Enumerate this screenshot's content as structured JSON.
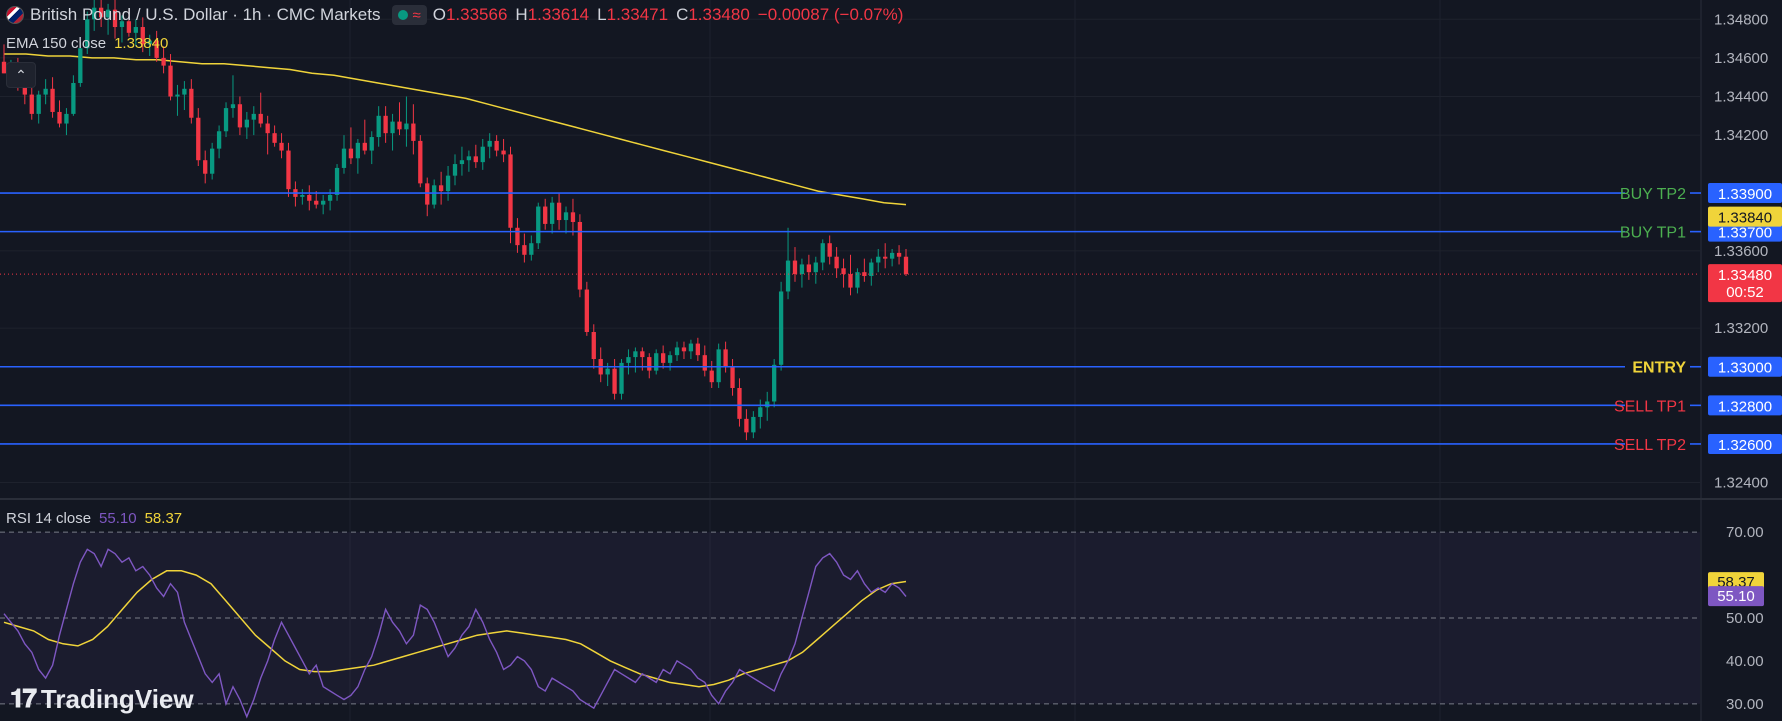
{
  "header": {
    "symbol_title": "British Pound / U.S. Dollar · 1h · CMC Markets",
    "ohlc": [
      {
        "key": "O",
        "value": "1.33566"
      },
      {
        "key": "H",
        "value": "1.33614"
      },
      {
        "key": "L",
        "value": "1.33471"
      },
      {
        "key": "C",
        "value": "1.33480"
      }
    ],
    "change": "−0.00087 (−0.07%)",
    "ema_label": "EMA 150 close",
    "ema_value": "1.33840",
    "rsi_label": "RSI 14 close",
    "rsi_value": "55.10",
    "rsi_ma_value": "58.37"
  },
  "branding": {
    "logo_text": "TradingView"
  },
  "colors": {
    "background": "#131722",
    "up": "#089981",
    "down": "#f23645",
    "ema": "#f0d43a",
    "rsi": "#7e57c2",
    "level_line": "#2962ff",
    "buy_label": "#4caf50",
    "sell_label": "#f23645",
    "entry_label": "#f0d43a"
  },
  "icons": [
    "uk-flag-icon",
    "live-dot-icon",
    "wave-icon",
    "chevron-up-icon",
    "tradingview-logo-icon"
  ],
  "chart_data": {
    "type": "candlestick",
    "symbol": "GBPUSD",
    "timeframe": "1h",
    "y_axis": {
      "ylim": [
        1.3232,
        1.349
      ],
      "ticks": [
        "1.32400",
        "1.33200",
        "1.33600",
        "1.34200",
        "1.34400",
        "1.34600",
        "1.34800"
      ]
    },
    "last_price": {
      "value": 1.3348,
      "label": "1.33480",
      "countdown": "00:52"
    },
    "ema_tag": {
      "value": 1.3384,
      "label": "1.33840"
    },
    "levels": [
      {
        "name": "BUY TP2",
        "value": 1.339,
        "label": "1.33900",
        "kind": "buy"
      },
      {
        "name": "BUY TP1",
        "value": 1.337,
        "label": "1.33700",
        "kind": "buy"
      },
      {
        "name": "ENTRY",
        "value": 1.33,
        "label": "1.33000",
        "kind": "entry"
      },
      {
        "name": "SELL TP1",
        "value": 1.328,
        "label": "1.32800",
        "kind": "sell"
      },
      {
        "name": "SELL TP2",
        "value": 1.326,
        "label": "1.32600",
        "kind": "sell"
      }
    ],
    "candles": [
      [
        1.3458,
        1.3467,
        1.3452,
        1.3452
      ],
      [
        1.3452,
        1.3459,
        1.3447,
        1.3456
      ],
      [
        1.3456,
        1.346,
        1.3443,
        1.3446
      ],
      [
        1.3446,
        1.3451,
        1.3436,
        1.3441
      ],
      [
        1.3441,
        1.3445,
        1.3428,
        1.3431
      ],
      [
        1.3431,
        1.3443,
        1.3426,
        1.3441
      ],
      [
        1.3441,
        1.3449,
        1.3436,
        1.3444
      ],
      [
        1.3444,
        1.345,
        1.3429,
        1.3432
      ],
      [
        1.3432,
        1.3438,
        1.3424,
        1.3426
      ],
      [
        1.3426,
        1.3434,
        1.342,
        1.3431
      ],
      [
        1.3431,
        1.3451,
        1.343,
        1.3447
      ],
      [
        1.3447,
        1.3468,
        1.3445,
        1.3465
      ],
      [
        1.3465,
        1.3484,
        1.3462,
        1.348
      ],
      [
        1.348,
        1.349,
        1.3474,
        1.3486
      ],
      [
        1.3486,
        1.3492,
        1.3476,
        1.3481
      ],
      [
        1.3481,
        1.3488,
        1.3472,
        1.3485
      ],
      [
        1.3485,
        1.349,
        1.347,
        1.3476
      ],
      [
        1.3476,
        1.3482,
        1.3468,
        1.3479
      ],
      [
        1.3479,
        1.3485,
        1.3471,
        1.3473
      ],
      [
        1.3473,
        1.348,
        1.3466,
        1.3476
      ],
      [
        1.3476,
        1.3481,
        1.3463,
        1.3467
      ],
      [
        1.3467,
        1.3472,
        1.3461,
        1.3469
      ],
      [
        1.3469,
        1.3474,
        1.3458,
        1.346
      ],
      [
        1.346,
        1.3466,
        1.3452,
        1.3456
      ],
      [
        1.3456,
        1.3462,
        1.3438,
        1.344
      ],
      [
        1.344,
        1.3446,
        1.343,
        1.3441
      ],
      [
        1.3441,
        1.3448,
        1.3433,
        1.3444
      ],
      [
        1.3444,
        1.3449,
        1.3426,
        1.3429
      ],
      [
        1.3429,
        1.3434,
        1.3404,
        1.3407
      ],
      [
        1.3407,
        1.3412,
        1.3395,
        1.34
      ],
      [
        1.34,
        1.3416,
        1.3397,
        1.3413
      ],
      [
        1.3413,
        1.3425,
        1.3408,
        1.3422
      ],
      [
        1.3422,
        1.3437,
        1.3419,
        1.3434
      ],
      [
        1.3434,
        1.3451,
        1.3429,
        1.3436
      ],
      [
        1.3436,
        1.344,
        1.342,
        1.3424
      ],
      [
        1.3424,
        1.3432,
        1.3418,
        1.3428
      ],
      [
        1.3428,
        1.3435,
        1.342,
        1.3431
      ],
      [
        1.3431,
        1.3442,
        1.3424,
        1.3426
      ],
      [
        1.3426,
        1.343,
        1.341,
        1.3421
      ],
      [
        1.3421,
        1.3425,
        1.3414,
        1.3416
      ],
      [
        1.3416,
        1.3421,
        1.3408,
        1.3412
      ],
      [
        1.3412,
        1.3416,
        1.3388,
        1.3392
      ],
      [
        1.3392,
        1.3396,
        1.3383,
        1.3388
      ],
      [
        1.3388,
        1.3392,
        1.3384,
        1.3389
      ],
      [
        1.3389,
        1.3394,
        1.3381,
        1.3386
      ],
      [
        1.3386,
        1.3391,
        1.3382,
        1.3384
      ],
      [
        1.3384,
        1.3389,
        1.3379,
        1.3386
      ],
      [
        1.3386,
        1.3392,
        1.3381,
        1.3389
      ],
      [
        1.3389,
        1.3405,
        1.3386,
        1.3403
      ],
      [
        1.3403,
        1.342,
        1.34,
        1.3413
      ],
      [
        1.3413,
        1.3424,
        1.3405,
        1.3408
      ],
      [
        1.3408,
        1.3418,
        1.34,
        1.3416
      ],
      [
        1.3416,
        1.3428,
        1.341,
        1.3412
      ],
      [
        1.3412,
        1.3422,
        1.3405,
        1.3419
      ],
      [
        1.3419,
        1.3435,
        1.3414,
        1.343
      ],
      [
        1.343,
        1.3435,
        1.3416,
        1.3421
      ],
      [
        1.3421,
        1.3431,
        1.3412,
        1.3427
      ],
      [
        1.3427,
        1.3437,
        1.342,
        1.3423
      ],
      [
        1.3423,
        1.344,
        1.3414,
        1.3426
      ],
      [
        1.3426,
        1.3436,
        1.341,
        1.3417
      ],
      [
        1.3417,
        1.342,
        1.3393,
        1.3395
      ],
      [
        1.3395,
        1.3398,
        1.3378,
        1.3384
      ],
      [
        1.3384,
        1.3397,
        1.3382,
        1.3394
      ],
      [
        1.3394,
        1.3401,
        1.3384,
        1.3391
      ],
      [
        1.3391,
        1.3404,
        1.3386,
        1.3399
      ],
      [
        1.3399,
        1.341,
        1.3394,
        1.3405
      ],
      [
        1.3405,
        1.3414,
        1.3399,
        1.3407
      ],
      [
        1.3407,
        1.3412,
        1.3401,
        1.3409
      ],
      [
        1.3409,
        1.3415,
        1.3403,
        1.3406
      ],
      [
        1.3406,
        1.3418,
        1.3402,
        1.3414
      ],
      [
        1.3414,
        1.3421,
        1.3408,
        1.3417
      ],
      [
        1.3417,
        1.342,
        1.3409,
        1.3412
      ],
      [
        1.3412,
        1.3418,
        1.3406,
        1.341
      ],
      [
        1.341,
        1.3414,
        1.3364,
        1.3372
      ],
      [
        1.3372,
        1.3377,
        1.3359,
        1.3363
      ],
      [
        1.3363,
        1.3369,
        1.3354,
        1.3358
      ],
      [
        1.3358,
        1.3368,
        1.3355,
        1.3364
      ],
      [
        1.3364,
        1.3385,
        1.3361,
        1.3383
      ],
      [
        1.3383,
        1.3387,
        1.3371,
        1.3374
      ],
      [
        1.3374,
        1.3388,
        1.3369,
        1.3385
      ],
      [
        1.3385,
        1.339,
        1.3371,
        1.3376
      ],
      [
        1.3376,
        1.3383,
        1.3369,
        1.338
      ],
      [
        1.338,
        1.3387,
        1.3368,
        1.3375
      ],
      [
        1.3375,
        1.3379,
        1.3336,
        1.334
      ],
      [
        1.334,
        1.3344,
        1.3316,
        1.3318
      ],
      [
        1.3318,
        1.3322,
        1.3299,
        1.3304
      ],
      [
        1.3304,
        1.331,
        1.3292,
        1.3296
      ],
      [
        1.3296,
        1.3302,
        1.329,
        1.3299
      ],
      [
        1.3299,
        1.3304,
        1.3283,
        1.3286
      ],
      [
        1.3286,
        1.3304,
        1.3283,
        1.3302
      ],
      [
        1.3302,
        1.3309,
        1.3296,
        1.3305
      ],
      [
        1.3305,
        1.331,
        1.3297,
        1.3308
      ],
      [
        1.3308,
        1.331,
        1.3298,
        1.3305
      ],
      [
        1.3305,
        1.3307,
        1.3294,
        1.3298
      ],
      [
        1.3298,
        1.3309,
        1.3296,
        1.3307
      ],
      [
        1.3307,
        1.3311,
        1.3299,
        1.3302
      ],
      [
        1.3302,
        1.3308,
        1.3298,
        1.3306
      ],
      [
        1.3306,
        1.3313,
        1.3303,
        1.331
      ],
      [
        1.331,
        1.3313,
        1.3304,
        1.3308
      ],
      [
        1.3308,
        1.3314,
        1.3304,
        1.3312
      ],
      [
        1.3312,
        1.3315,
        1.3303,
        1.3306
      ],
      [
        1.3306,
        1.3311,
        1.3295,
        1.3298
      ],
      [
        1.3298,
        1.3303,
        1.3289,
        1.3292
      ],
      [
        1.3292,
        1.3312,
        1.3289,
        1.3309
      ],
      [
        1.3309,
        1.3313,
        1.3297,
        1.33
      ],
      [
        1.33,
        1.3304,
        1.3285,
        1.3289
      ],
      [
        1.3289,
        1.3294,
        1.3269,
        1.3273
      ],
      [
        1.3273,
        1.3278,
        1.3262,
        1.3266
      ],
      [
        1.3266,
        1.3277,
        1.3263,
        1.3274
      ],
      [
        1.3274,
        1.3283,
        1.3268,
        1.3279
      ],
      [
        1.3279,
        1.3287,
        1.3272,
        1.3282
      ],
      [
        1.3282,
        1.3304,
        1.3279,
        1.3301
      ],
      [
        1.3301,
        1.3344,
        1.3298,
        1.3339
      ],
      [
        1.3339,
        1.3372,
        1.3335,
        1.3355
      ],
      [
        1.3355,
        1.3362,
        1.3344,
        1.3348
      ],
      [
        1.3348,
        1.3356,
        1.3341,
        1.3353
      ],
      [
        1.3353,
        1.3358,
        1.3345,
        1.3349
      ],
      [
        1.3349,
        1.3357,
        1.3343,
        1.3354
      ],
      [
        1.3354,
        1.3366,
        1.335,
        1.3364
      ],
      [
        1.3364,
        1.3368,
        1.3353,
        1.3357
      ],
      [
        1.3357,
        1.3362,
        1.3346,
        1.3351
      ],
      [
        1.3351,
        1.3356,
        1.3341,
        1.3348
      ],
      [
        1.3348,
        1.3358,
        1.3337,
        1.3341
      ],
      [
        1.3341,
        1.3351,
        1.3338,
        1.3349
      ],
      [
        1.3349,
        1.3356,
        1.3344,
        1.3347
      ],
      [
        1.3347,
        1.3356,
        1.3342,
        1.3354
      ],
      [
        1.3354,
        1.3361,
        1.3349,
        1.3357
      ],
      [
        1.3357,
        1.3364,
        1.3351,
        1.3356
      ],
      [
        1.3356,
        1.3361,
        1.3352,
        1.3359
      ],
      [
        1.3359,
        1.3363,
        1.3353,
        1.3357
      ],
      [
        1.3357,
        1.3361,
        1.3347,
        1.3348
      ]
    ],
    "ema": [
      1.3462,
      1.3462,
      1.3461,
      1.3461,
      1.346,
      1.346,
      1.3459,
      1.3459,
      1.3458,
      1.3457,
      1.3457,
      1.3456,
      1.3455,
      1.3454,
      1.3452,
      1.3451,
      1.3449,
      1.3447,
      1.3445,
      1.3443,
      1.3441,
      1.3439,
      1.3436,
      1.3433,
      1.343,
      1.3427,
      1.3424,
      1.3421,
      1.3418,
      1.3415,
      1.3412,
      1.3409,
      1.3406,
      1.3403,
      1.34,
      1.3397,
      1.3394,
      1.3391,
      1.3389,
      1.3387,
      1.3385,
      1.3384
    ],
    "rsi": {
      "ylim": [
        26,
        74
      ],
      "levels": [
        70,
        50,
        30
      ],
      "tick_labels": [
        "70.00",
        "50.00",
        "40.00",
        "30.00"
      ],
      "rsi_values": [
        51,
        49,
        47,
        44,
        42,
        38,
        36,
        39,
        46,
        52,
        58,
        63,
        66,
        65,
        62,
        66,
        65,
        63,
        64,
        61,
        62,
        60,
        57,
        55,
        58,
        56,
        49,
        45,
        41,
        37,
        35,
        37,
        30,
        34,
        31,
        27,
        31,
        36,
        40,
        45,
        49,
        46,
        43,
        40,
        37,
        39,
        34,
        33,
        32,
        31,
        32,
        34,
        38,
        41,
        46,
        52,
        49,
        47,
        44,
        46,
        53,
        52,
        49,
        45,
        41,
        43,
        46,
        48,
        52,
        49,
        45,
        42,
        38,
        39,
        41,
        40,
        38,
        34,
        33,
        36,
        35,
        34,
        33,
        31,
        30,
        29,
        32,
        35,
        38,
        37,
        36,
        35,
        37,
        36,
        35,
        38,
        37,
        40,
        39,
        38,
        36,
        35,
        32,
        30,
        33,
        35,
        38,
        37,
        36,
        35,
        34,
        33,
        37,
        40,
        44,
        50,
        56,
        62,
        64,
        65,
        63,
        60,
        59,
        61,
        58,
        56,
        57,
        56,
        58,
        57,
        55
      ],
      "ma_values": [
        49,
        48,
        47,
        45,
        44,
        43.5,
        45,
        48,
        52,
        56,
        59,
        61,
        61,
        60,
        58,
        54,
        50,
        46,
        43,
        40,
        38,
        37.5,
        37.5,
        38,
        38.5,
        39,
        40,
        41,
        42,
        43,
        44,
        45,
        46,
        46.5,
        47,
        46.5,
        46,
        45.5,
        45,
        44,
        42,
        40,
        38.5,
        37,
        36,
        35,
        34.5,
        34,
        34.5,
        35.5,
        37,
        38,
        39,
        40,
        42,
        45,
        48,
        51,
        54,
        56.5,
        58,
        58.5
      ]
    }
  }
}
